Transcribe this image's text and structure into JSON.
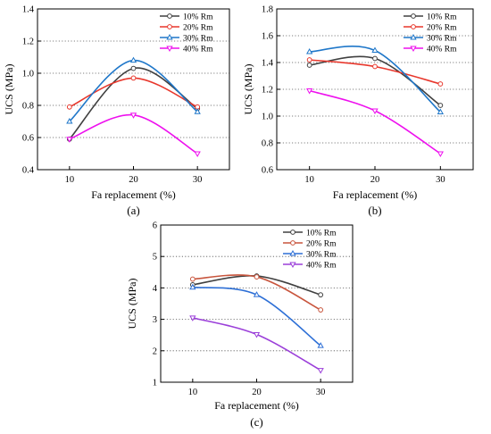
{
  "figure": {
    "panels": [
      {
        "label": "(a)",
        "xlabel": "Fa replacement (%)",
        "ylabel": "UCS (MPa)"
      },
      {
        "label": "(b)",
        "xlabel": "Fa replacement (%)",
        "ylabel": "UCS (MPa)"
      },
      {
        "label": "(c)",
        "xlabel": "Fa replacement (%)",
        "ylabel": "UCS (MPa)"
      }
    ]
  },
  "chart_data": [
    {
      "type": "line",
      "title": "",
      "panel_label": "(a)",
      "xlabel": "Fa replacement (%)",
      "ylabel": "UCS (MPa)",
      "x": [
        10,
        20,
        30
      ],
      "xlim": [
        5,
        35
      ],
      "ylim": [
        0.4,
        1.4
      ],
      "xticks": [
        10,
        20,
        30
      ],
      "yticks": [
        0.4,
        0.6,
        0.8,
        1.0,
        1.2,
        1.4
      ],
      "ytick_labels": [
        "0.4",
        "0.6",
        "0.8",
        "1.0",
        "1.2",
        "1.4"
      ],
      "grid": "horizontal dotted",
      "legend": "top-right",
      "smooth": true,
      "series": [
        {
          "name": "10% Rm",
          "values": [
            0.59,
            1.03,
            0.78
          ],
          "color": "#404040",
          "marker": "circle"
        },
        {
          "name": "20% Rm",
          "values": [
            0.79,
            0.97,
            0.79
          ],
          "color": "#e8372c",
          "marker": "circle"
        },
        {
          "name": "30% Rm",
          "values": [
            0.7,
            1.08,
            0.76
          ],
          "color": "#1f77c9",
          "marker": "triangle"
        },
        {
          "name": "40% Rm",
          "values": [
            0.59,
            0.74,
            0.5
          ],
          "color": "#ee10ee",
          "marker": "triangle-down"
        }
      ]
    },
    {
      "type": "line",
      "title": "",
      "panel_label": "(b)",
      "xlabel": "Fa replacement (%)",
      "ylabel": "UCS (MPa)",
      "x": [
        10,
        20,
        30
      ],
      "xlim": [
        5,
        35
      ],
      "ylim": [
        0.6,
        1.8
      ],
      "xticks": [
        10,
        20,
        30
      ],
      "yticks": [
        0.6,
        0.8,
        1.0,
        1.2,
        1.4,
        1.6,
        1.8
      ],
      "ytick_labels": [
        "0.6",
        "0.8",
        "1.0",
        "1.2",
        "1.4",
        "1.6",
        "1.8"
      ],
      "grid": "horizontal dotted",
      "legend": "top-right",
      "smooth": true,
      "series": [
        {
          "name": "10% Rm",
          "values": [
            1.38,
            1.43,
            1.08
          ],
          "color": "#404040",
          "marker": "circle"
        },
        {
          "name": "20% Rm",
          "values": [
            1.42,
            1.37,
            1.24
          ],
          "color": "#e8372c",
          "marker": "circle"
        },
        {
          "name": "30% Rm",
          "values": [
            1.48,
            1.49,
            1.03
          ],
          "color": "#1f77c9",
          "marker": "triangle"
        },
        {
          "name": "40% Rm",
          "values": [
            1.19,
            1.04,
            0.72
          ],
          "color": "#ee10ee",
          "marker": "triangle-down"
        }
      ]
    },
    {
      "type": "line",
      "title": "",
      "panel_label": "(c)",
      "xlabel": "Fa replacement (%)",
      "ylabel": "UCS (MPa)",
      "x": [
        10,
        20,
        30
      ],
      "xlim": [
        5,
        35
      ],
      "ylim": [
        1,
        6
      ],
      "xticks": [
        10,
        20,
        30
      ],
      "yticks": [
        1,
        2,
        3,
        4,
        5,
        6
      ],
      "ytick_labels": [
        "1",
        "2",
        "3",
        "4",
        "5",
        "6"
      ],
      "grid": "horizontal dotted",
      "legend": "top-right",
      "smooth": true,
      "series": [
        {
          "name": "10% Rm",
          "values": [
            4.1,
            4.38,
            3.78
          ],
          "color": "#404040",
          "marker": "circle"
        },
        {
          "name": "20% Rm",
          "values": [
            4.28,
            4.35,
            3.3
          ],
          "color": "#c8553d",
          "marker": "circle"
        },
        {
          "name": "30% Rm",
          "values": [
            4.02,
            3.78,
            2.16
          ],
          "color": "#2d6fd6",
          "marker": "triangle"
        },
        {
          "name": "40% Rm",
          "values": [
            3.05,
            2.52,
            1.38
          ],
          "color": "#9b3fd9",
          "marker": "triangle-down"
        }
      ]
    }
  ]
}
